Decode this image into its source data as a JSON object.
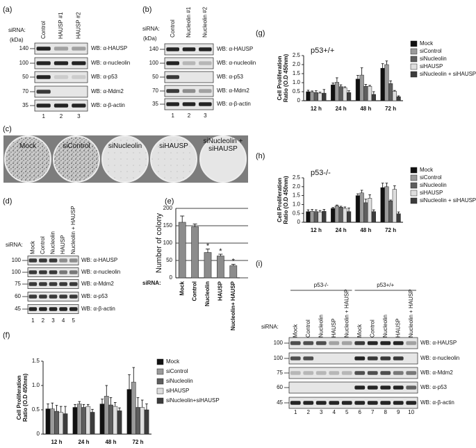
{
  "blots": [
    {
      "panel": "(a)",
      "siRNA": "siRNA:",
      "kDa": "(kDa)",
      "lanes": [
        "Control",
        "HAUSP #1",
        "HAUSP #2"
      ],
      "markers": [
        140,
        100,
        50,
        70,
        35
      ],
      "wb": [
        "WB: α-HAUSP",
        "WB: α-nucleolin",
        "WB: α-p53",
        "WB: α-Mdm2",
        "WB: α-β-actin"
      ],
      "lane_numbers": [
        1,
        2,
        3
      ]
    },
    {
      "panel": "(b)",
      "siRNA": "siRNA:",
      "kDa": "(kDa)",
      "lanes": [
        "Control",
        "Nucleolin #1",
        "Nucleolin #2"
      ],
      "markers": [
        140,
        100,
        50,
        70,
        35
      ],
      "wb": [
        "WB: α-HAUSP",
        "WB: α-nucleolin",
        "WB: α-p53",
        "WB: α-Mdm2",
        "WB: α-β-actin"
      ],
      "lane_numbers": [
        1,
        2,
        3
      ]
    },
    {
      "panel": "(d)",
      "siRNA": "siRNA:",
      "lanes": [
        "Mock",
        "Control",
        "Nucleolin",
        "HAUSP",
        "Nucleolin + HAUSP"
      ],
      "markers": [
        100,
        100,
        75,
        60,
        45
      ],
      "wb": [
        "WB: α-HAUSP",
        "WB: α-nucleolin",
        "WB: α-Mdm2",
        "WB: α-p53",
        "WB: α-β-actin"
      ],
      "lane_numbers": [
        1,
        2,
        3,
        4,
        5
      ]
    },
    {
      "panel": "(i)",
      "siRNA": "siRNA:",
      "groups": [
        "p53-/-",
        "p53+/+"
      ],
      "lanes": [
        "Mock",
        "Control",
        "Nucleolin",
        "HAUSP",
        "Nucleolin + HAUSP",
        "Mock",
        "Control",
        "Nucleolin",
        "HAUSP",
        "Nucleolin + HAUSP"
      ],
      "markers": [
        100,
        100,
        75,
        60,
        45
      ],
      "wb": [
        "WB: α-HAUSP",
        "WB: α-nucleolin",
        "WB: α-Mdm2",
        "WB: α-p53",
        "WB: α-β-actin"
      ],
      "lane_numbers": [
        1,
        2,
        3,
        4,
        5,
        6,
        7,
        8,
        9,
        10
      ]
    }
  ],
  "plates": {
    "panel": "(c)",
    "labels": [
      "Mock",
      "siControl",
      "siNucleolin",
      "siHAUSP",
      "siNucleolin + siHAUSP"
    ]
  },
  "chart_data": [
    {
      "type": "bar",
      "panel": "(e)",
      "ylabel": "Number of colony",
      "xlabel": "siRNA:",
      "categories": [
        "Mock",
        "Control",
        "Nucleolin",
        "HAUSP",
        "Nucleolin+ HAUSP"
      ],
      "values": [
        160,
        147,
        73,
        63,
        35
      ],
      "errors": [
        18,
        8,
        10,
        5,
        4
      ],
      "color": "#8c8c8c",
      "annotations": [
        {
          "category": "Nucleolin",
          "text": "*"
        },
        {
          "category": "HAUSP",
          "text": "*"
        },
        {
          "category": "Nucleolin+ HAUSP",
          "text": "*"
        }
      ],
      "ylim": [
        0,
        200
      ],
      "yticks": [
        0,
        50,
        100,
        150,
        200
      ],
      "grid": true
    },
    {
      "type": "grouped_bar",
      "panel": "(f)",
      "ylabel": [
        "Cell Proliferation",
        "Ratio (O.D 450nm)"
      ],
      "categories": [
        "12 h",
        "24 h",
        "48 h",
        "72 h"
      ],
      "series": [
        {
          "name": "Mock",
          "color": "#111111",
          "values": [
            0.52,
            0.55,
            0.62,
            0.92
          ],
          "errors": [
            0.1,
            0.06,
            0.1,
            0.3
          ]
        },
        {
          "name": "siControl",
          "color": "#9a9a9a",
          "values": [
            0.52,
            0.62,
            0.78,
            1.07
          ],
          "errors": [
            0.12,
            0.05,
            0.22,
            0.3
          ]
        },
        {
          "name": "siNucleolin",
          "color": "#5e5e5e",
          "values": [
            0.47,
            0.55,
            0.6,
            0.55
          ],
          "errors": [
            0.12,
            0.06,
            0.15,
            0.2
          ]
        },
        {
          "name": "siHAUSP",
          "color": "#dedede",
          "values": [
            0.45,
            0.57,
            0.57,
            0.55
          ],
          "errors": [
            0.12,
            0.04,
            0.08,
            0.15
          ]
        },
        {
          "name": "siNucleolin+siHAUSP",
          "color": "#3c3c3c",
          "values": [
            0.42,
            0.45,
            0.48,
            0.5
          ],
          "errors": [
            0.15,
            0.06,
            0.06,
            0.12
          ]
        }
      ],
      "ylim": [
        0,
        1.5
      ],
      "yticks": [
        0,
        0.5,
        {
          "value": 1,
          "label": "1.0"
        },
        1.5
      ],
      "grid": false
    },
    {
      "type": "grouped_bar",
      "panel": "(g)",
      "title": "p53+/+",
      "ylabel": [
        "Cell Proliferation",
        "Ratio (O.D 450nm)"
      ],
      "categories": [
        "12 h",
        "24 h",
        "48 h",
        "72 h"
      ],
      "series": [
        {
          "name": "Mock",
          "color": "#111111",
          "values": [
            0.5,
            0.88,
            1.2,
            1.8
          ],
          "errors": [
            0.08,
            0.1,
            0.2,
            0.25
          ]
        },
        {
          "name": "siControl",
          "color": "#9a9a9a",
          "values": [
            0.48,
            1.02,
            1.42,
            2.0
          ],
          "errors": [
            0.06,
            0.25,
            0.4,
            0.2
          ]
        },
        {
          "name": "siNucleolin",
          "color": "#5e5e5e",
          "values": [
            0.45,
            0.78,
            0.8,
            0.95
          ],
          "errors": [
            0.1,
            0.1,
            0.1,
            0.15
          ]
        },
        {
          "name": "siHAUSP",
          "color": "#dedede",
          "values": [
            0.42,
            0.72,
            0.8,
            0.52
          ],
          "errors": [
            0.05,
            0.05,
            0.05,
            0.05
          ]
        },
        {
          "name": "siNucleolin + siHAUSP",
          "color": "#3c3c3c",
          "values": [
            0.42,
            0.45,
            0.35,
            0.22
          ],
          "errors": [
            0.2,
            0.1,
            0.15,
            0.05
          ]
        }
      ],
      "ylim": [
        0,
        2.5
      ],
      "yticks": [
        0,
        0.5,
        {
          "value": 1,
          "label": "1.0"
        },
        1.5,
        {
          "value": 2,
          "label": "2.0"
        },
        2.5
      ],
      "grid": false
    },
    {
      "type": "grouped_bar",
      "panel": "(h)",
      "title": "p53-/-",
      "ylabel": [
        "Cell Proliferation",
        "Ratio (O.D 450nm)"
      ],
      "categories": [
        "12 h",
        "24 h",
        "48 h",
        "72 h"
      ],
      "series": [
        {
          "name": "Mock",
          "color": "#111111",
          "values": [
            0.6,
            0.78,
            1.5,
            1.95
          ],
          "errors": [
            0.1,
            0.05,
            0.1,
            0.25
          ]
        },
        {
          "name": "siControl",
          "color": "#9a9a9a",
          "values": [
            0.62,
            0.92,
            1.65,
            2.0
          ],
          "errors": [
            0.1,
            0.05,
            0.15,
            0.2
          ]
        },
        {
          "name": "siNucleolin",
          "color": "#5e5e5e",
          "values": [
            0.6,
            0.85,
            1.1,
            1.2
          ],
          "errors": [
            0.1,
            0.05,
            0.2,
            0.05
          ]
        },
        {
          "name": "siHAUSP",
          "color": "#dedede",
          "values": [
            0.58,
            0.78,
            1.35,
            1.85
          ],
          "errors": [
            0.08,
            0.08,
            0.2,
            0.2
          ]
        },
        {
          "name": "siNucleolin + siHAUSP",
          "color": "#3c3c3c",
          "values": [
            0.62,
            0.6,
            0.6,
            0.48
          ],
          "errors": [
            0.1,
            0.2,
            0.1,
            0.1
          ]
        }
      ],
      "ylim": [
        0,
        2.5
      ],
      "yticks": [
        0,
        0.5,
        {
          "value": 1,
          "label": "1.0"
        },
        1.5,
        {
          "value": 2,
          "label": "2.0"
        },
        2.5
      ],
      "grid": false
    }
  ]
}
